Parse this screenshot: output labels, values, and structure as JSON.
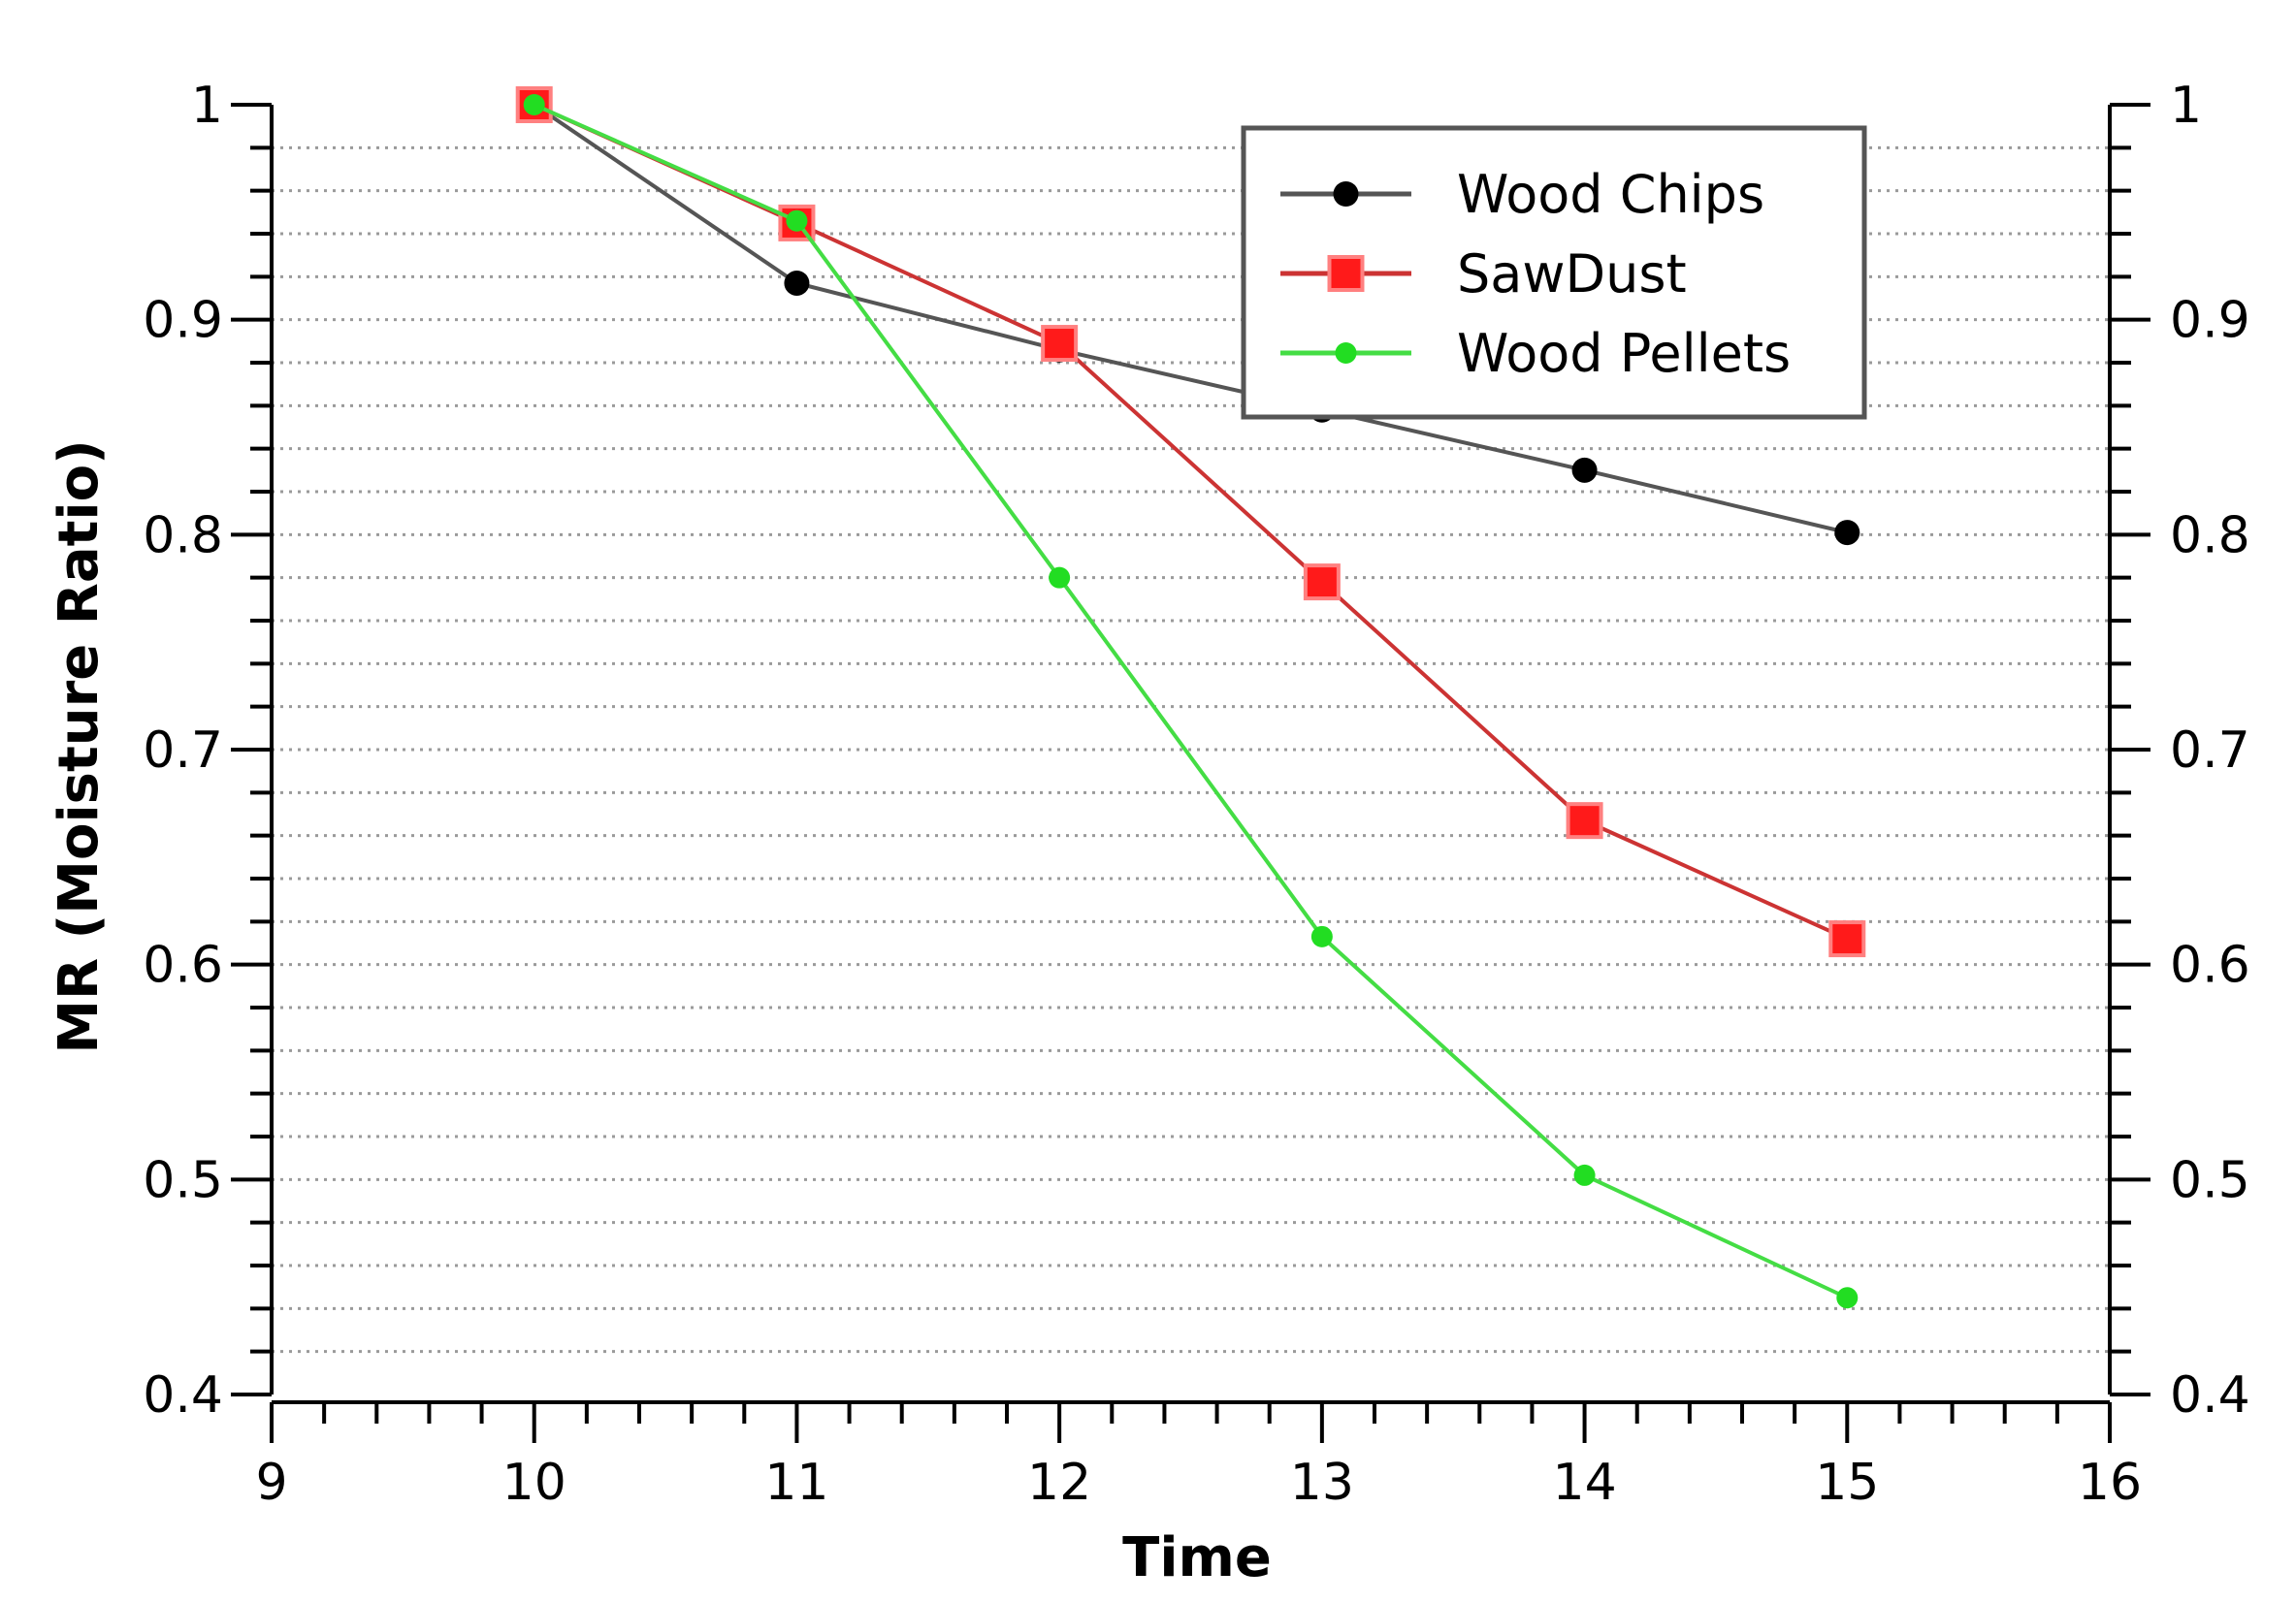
{
  "chart_data": {
    "type": "line",
    "title": "",
    "xlabel": "Time",
    "ylabel": "MR (Moisture Ratio)",
    "xlim": [
      9,
      16
    ],
    "ylim": [
      0.4,
      1
    ],
    "x_ticks": [
      "9",
      "10",
      "11",
      "12",
      "13",
      "14",
      "15",
      "16"
    ],
    "y_ticks": [
      "0.4",
      "0.5",
      "0.6",
      "0.7",
      "0.8",
      "0.9",
      "1"
    ],
    "grid": "horizontal dotted",
    "legend_position": "top-right",
    "x": [
      10,
      11,
      12,
      13,
      14,
      15
    ],
    "series": [
      {
        "name": "Wood Chips",
        "color": "#000000",
        "line_color": "#555555",
        "marker": "circle",
        "values": [
          1.0,
          0.917,
          0.886,
          0.858,
          0.83,
          0.801
        ]
      },
      {
        "name": "SawDust",
        "color": "#ff1a1a",
        "line_color": "#cc3333",
        "marker": "square",
        "values": [
          1.0,
          0.945,
          0.889,
          0.778,
          0.667,
          0.612
        ]
      },
      {
        "name": "Wood Pellets",
        "color": "#22dd22",
        "line_color": "#44dd44",
        "marker": "diamond",
        "values": [
          1.0,
          0.946,
          0.78,
          0.613,
          0.502,
          0.445
        ]
      }
    ]
  }
}
